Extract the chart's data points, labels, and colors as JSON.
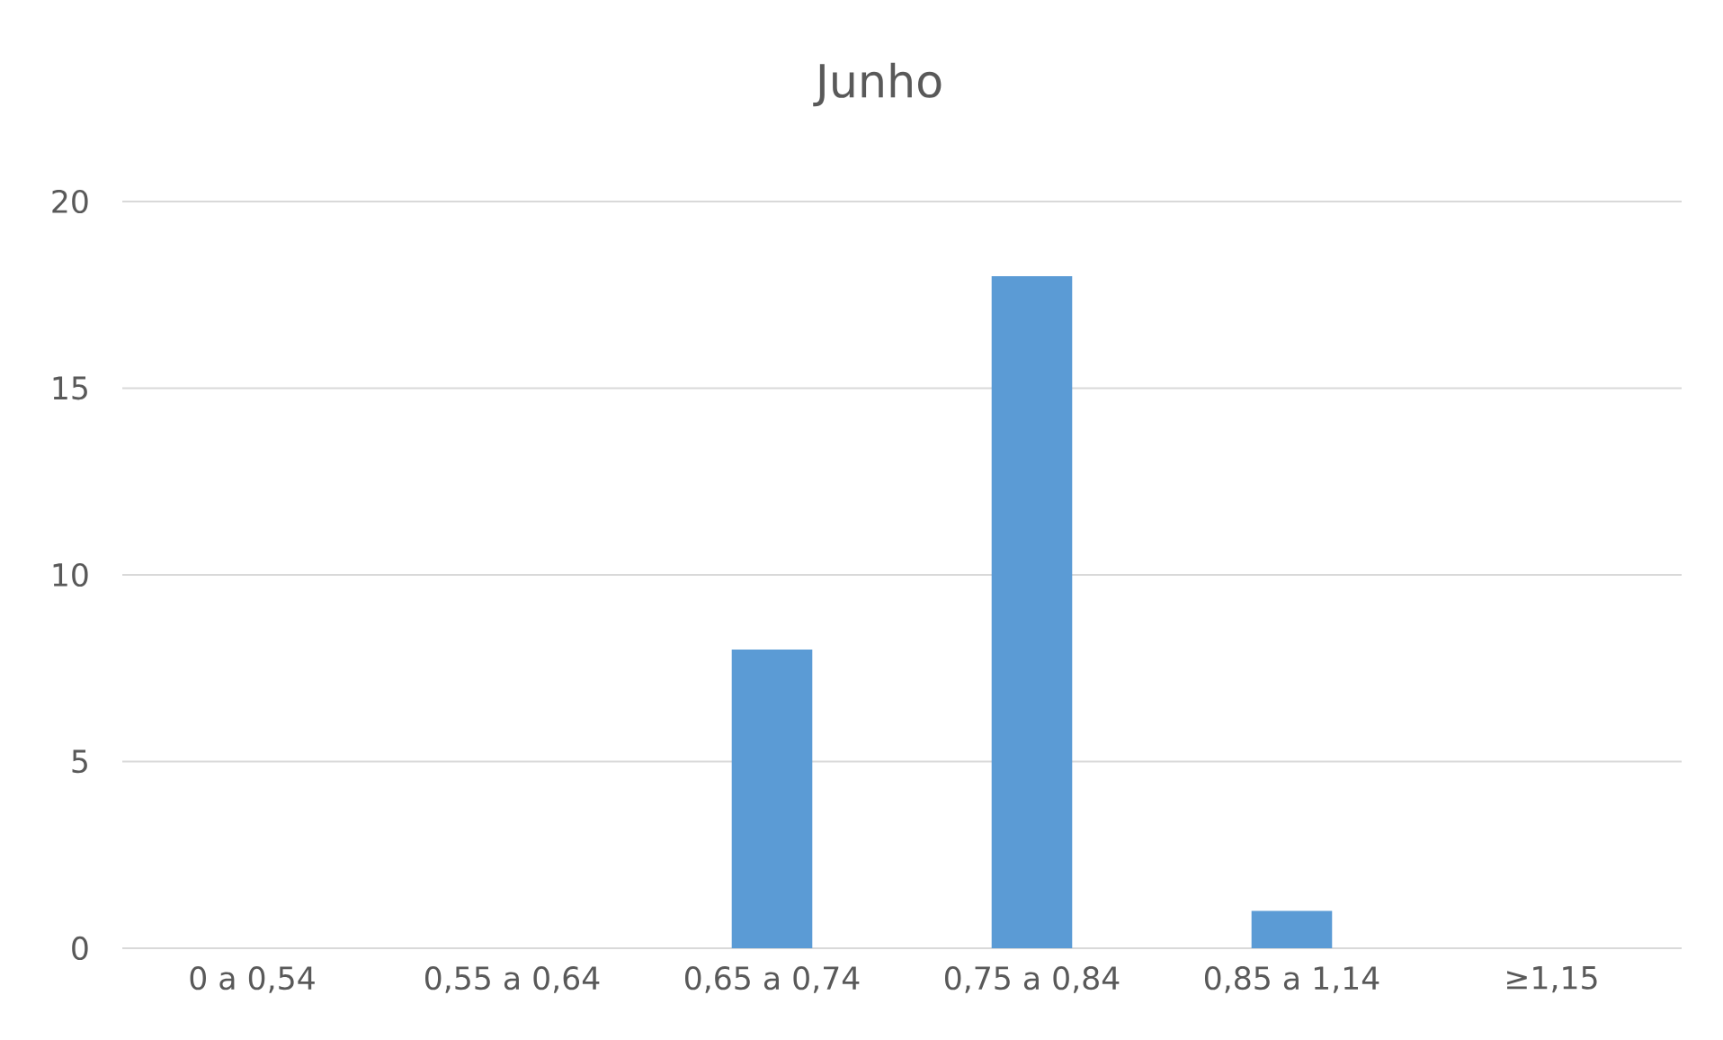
{
  "chart_data": {
    "type": "bar",
    "title": "Junho",
    "categories": [
      "0 a 0,54",
      "0,55 a 0,64",
      "0,65 a 0,74",
      "0,75 a 0,84",
      "0,85 a 1,14",
      "≥1,15"
    ],
    "values": [
      0,
      0,
      8,
      18,
      1,
      0
    ],
    "color": "#5b9bd5",
    "ylim": [
      0,
      20
    ],
    "yticks": [
      0,
      5,
      10,
      15,
      20
    ],
    "grid": "y"
  }
}
